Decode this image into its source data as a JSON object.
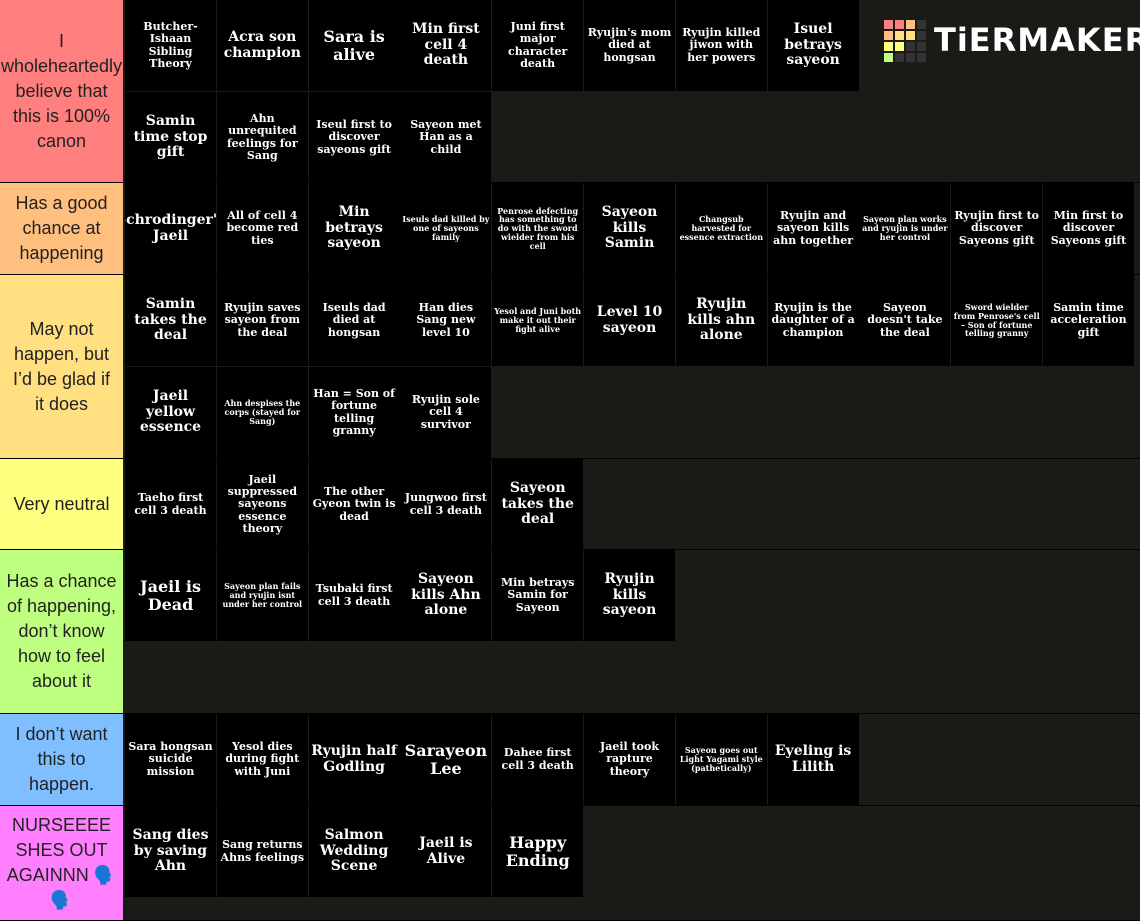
{
  "logo": "TiERMAKER",
  "tiers": [
    {
      "label": "I wholeheartedly believe that this is 100% canon",
      "color": "#ff7f7f",
      "items": [
        "Butcher-Ishaan Sibling Theory",
        "Acra son champion",
        "Sara is alive",
        "Min first cell 4 death",
        "Juni first major character death",
        "Ryujin's mom died at hongsan",
        "Ryujin killed jiwon with her powers",
        "Isuel betrays sayeon",
        "Samin time stop gift",
        "Ahn unrequited feelings for Sang",
        "Iseul first to discover sayeons gift",
        "Sayeon met Han as a child"
      ]
    },
    {
      "label": "Has a good chance at happening",
      "color": "#ffbf7f",
      "items": [
        "Schrodinger's Jaeil",
        "All of cell 4 become red ties",
        "Min betrays sayeon",
        "Iseuls dad killed by one of sayeons family",
        "Penrose defecting has something to do with the sword wielder from his cell",
        "Sayeon kills Samin",
        "Changsub harvested for essence extraction",
        "Ryujin and sayeon kills ahn together",
        "Sayeon plan works and ryujin is under her control",
        "Ryujin first to discover Sayeons gift",
        "Min first to discover Sayeons gift"
      ]
    },
    {
      "label": "May not happen, but I’d be glad if it does",
      "color": "#ffdf7f",
      "items": [
        "Samin takes the deal",
        "Ryujin saves sayeon from the deal",
        "Iseuls dad died at hongsan",
        "Han dies Sang new level 10",
        "Yesol and Juni both make it out their fight alive",
        "Level 10 sayeon",
        "Ryujin kills ahn alone",
        "Ryujin is the daughter of a champion",
        "Sayeon doesn't take the deal",
        "Sword wielder from Penrose's cell – Son of fortune telling granny",
        "Samin time acceleration gift",
        "Jaeil yellow essence",
        "Ahn despises the corps (stayed for Sang)",
        "Han = Son of fortune telling granny",
        "Ryujin sole cell 4 survivor"
      ]
    },
    {
      "label": "Very neutral",
      "color": "#ffff7f",
      "items": [
        "Taeho first cell 3 death",
        "Jaeil suppressed sayeons essence theory",
        "The other Gyeon twin is dead",
        "Jungwoo first cell 3 death",
        "Sayeon takes the deal"
      ]
    },
    {
      "label": "Has a chance of happening, don’t know how to feel about it",
      "color": "#bfff7f",
      "items": [
        "Jaeil is Dead",
        "Sayeon plan fails and ryujin isnt under her control",
        "Tsubaki first cell 3 death",
        "Sayeon kills Ahn alone",
        "Min betrays Samin for Sayeon",
        "Ryujin kills sayeon"
      ]
    },
    {
      "label": "I don’t want this to happen.",
      "color": "#7fbfff",
      "items": [
        "Sara hongsan suicide mission",
        "Yesol dies during fight with Juni",
        "Ryujin half Godling",
        "Sarayeon Lee",
        "Dahee first cell 3 death",
        "Jaeil took rapture theory",
        "Sayeon goes out Light Yagami style (pathetically)",
        "Eyeling is Lilith"
      ]
    },
    {
      "label": "NURSEEEE SHES OUT AGAINNN 🗣️🗣️",
      "color": "#ff7fff",
      "items": [
        "Sang dies by saving Ahn",
        "Sang returns Ahns feelings",
        "Salmon Wedding Scene",
        "Jaeil is Alive",
        "Happy Ending"
      ]
    }
  ]
}
